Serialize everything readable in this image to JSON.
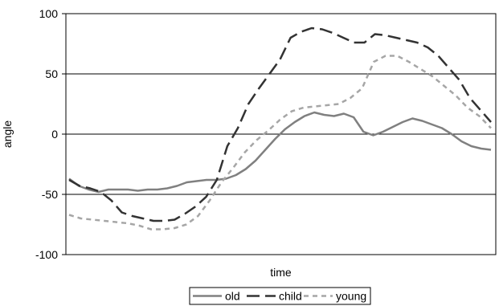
{
  "chart_data": {
    "type": "line",
    "xlabel": "time",
    "ylabel": "angle",
    "ylim": [
      -100,
      100
    ],
    "yticks": [
      -100,
      -50,
      0,
      50,
      100
    ],
    "grid": "horizontal",
    "legend_position": "bottom",
    "series": [
      {
        "name": "old",
        "color": "#808080",
        "dash": "solid",
        "values": [
          -37,
          -43,
          -46,
          -48,
          -46,
          -46,
          -46,
          -47,
          -46,
          -46,
          -45,
          -43,
          -40,
          -39,
          -38,
          -38,
          -37,
          -34,
          -29,
          -22,
          -13,
          -4,
          4,
          10,
          15,
          18,
          16,
          15,
          17,
          14,
          2,
          -1,
          2,
          6,
          10,
          13,
          11,
          8,
          5,
          0,
          -6,
          -10,
          -12,
          -13
        ]
      },
      {
        "name": "child",
        "color": "#333333",
        "dash": "long-dash",
        "values": [
          -38,
          -43,
          -45,
          -48,
          -55,
          -65,
          -68,
          -70,
          -72,
          -72,
          -71,
          -66,
          -60,
          -52,
          -38,
          -10,
          5,
          25,
          38,
          50,
          62,
          80,
          85,
          88,
          87,
          84,
          80,
          76,
          76,
          83,
          82,
          80,
          78,
          76,
          72,
          65,
          55,
          45,
          30,
          20,
          10
        ]
      },
      {
        "name": "young",
        "color": "#a6a6a6",
        "dash": "short-dash",
        "values": [
          -67,
          -70,
          -71,
          -72,
          -73,
          -74,
          -76,
          -79,
          -79,
          -78,
          -75,
          -68,
          -55,
          -40,
          -28,
          -15,
          -5,
          3,
          12,
          19,
          22,
          23,
          24,
          25,
          30,
          38,
          60,
          65,
          65,
          60,
          54,
          48,
          40,
          32,
          22,
          15,
          5
        ]
      }
    ]
  }
}
